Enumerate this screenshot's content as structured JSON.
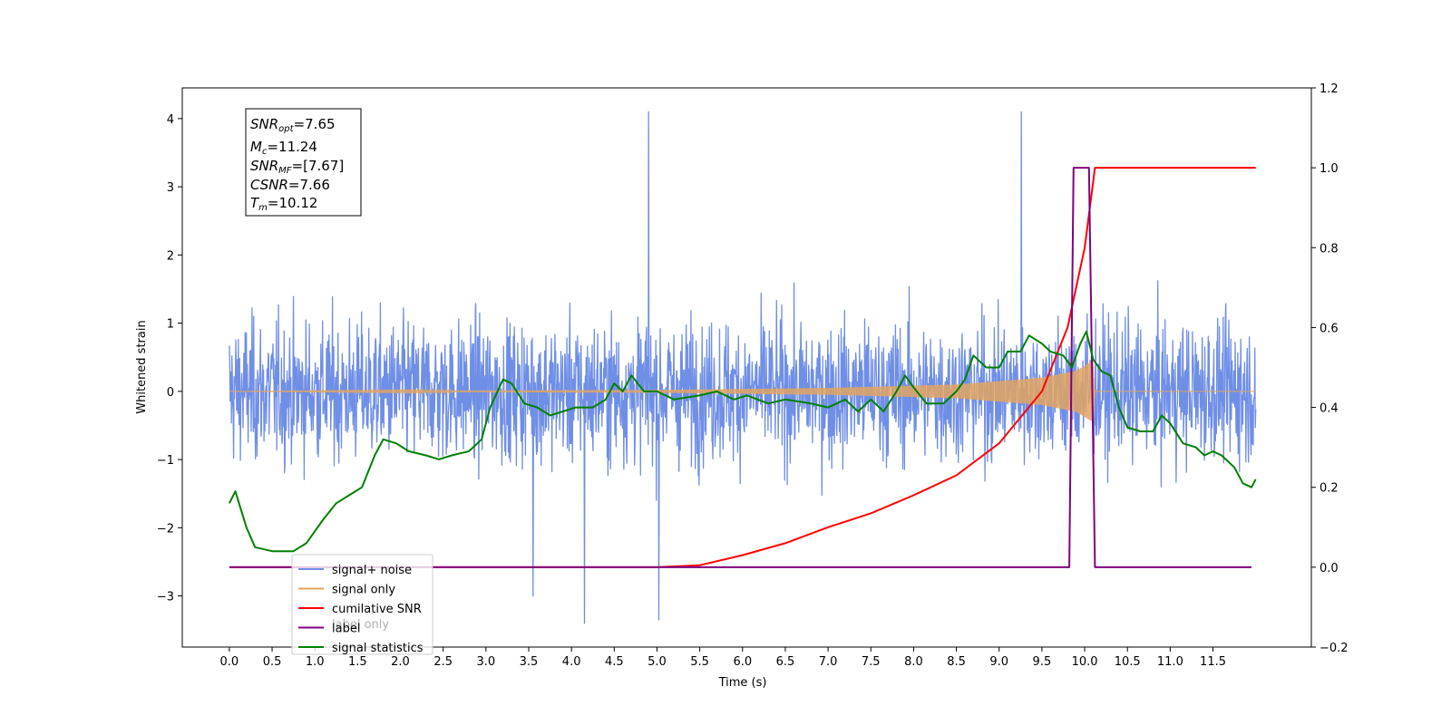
{
  "chart_data": {
    "type": "line",
    "xlabel": "Time (s)",
    "ylabel_left": "Whitened strain",
    "ylabel_right": "",
    "xlim": [
      -0.55,
      12.65
    ],
    "ylim_left": [
      -3.75,
      4.45
    ],
    "ylim_right": [
      -0.2,
      1.2
    ],
    "x_ticks": [
      "0.0",
      "0.5",
      "1.0",
      "1.5",
      "2.0",
      "2.5",
      "3.0",
      "3.5",
      "4.0",
      "4.5",
      "5.0",
      "5.5",
      "6.0",
      "6.5",
      "7.0",
      "7.5",
      "8.0",
      "8.5",
      "9.0",
      "9.5",
      "10.0",
      "10.5",
      "11.0",
      "11.5"
    ],
    "y_ticks_left": [
      "−3",
      "−2",
      "−1",
      "0",
      "1",
      "2",
      "3",
      "4"
    ],
    "y_ticks_right": [
      "−0.2",
      "0.0",
      "0.2",
      "0.4",
      "0.6",
      "0.8",
      "1.0",
      "1.2"
    ],
    "grid": false,
    "legend_placement": "lower-left",
    "stats_box": {
      "snr_opt": {
        "main": "SNR",
        "sub": "opt",
        "value": "=7.65"
      },
      "mc": {
        "main": "M",
        "sub": "c",
        "value": "=11.24"
      },
      "snr_mf": {
        "main": "SNR",
        "sub": "MF",
        "value": "=[7.67]"
      },
      "csnr": {
        "main": "CSNR",
        "value": "=7.66"
      },
      "tm": {
        "main": "T",
        "sub": "m",
        "value": "=10.12"
      }
    },
    "series": [
      {
        "name": "signal+ noise",
        "axis": "left",
        "color": "#6f8ee6",
        "x_range": [
          0.0,
          12.0
        ],
        "noise_std": 0.75,
        "notable_peaks": [
          {
            "x": 4.9,
            "y": 4.1
          },
          {
            "x": 9.26,
            "y": 4.1
          },
          {
            "x": 4.15,
            "y": -3.4
          },
          {
            "x": 5.02,
            "y": -3.35
          },
          {
            "x": 3.55,
            "y": -3.0
          }
        ]
      },
      {
        "name": "signal only",
        "axis": "left",
        "color": "#e3a561",
        "envelope": [
          {
            "x": 0.0,
            "y": 0.0
          },
          {
            "x": 5.0,
            "y": 0.02
          },
          {
            "x": 7.0,
            "y": 0.05
          },
          {
            "x": 8.5,
            "y": 0.1
          },
          {
            "x": 9.5,
            "y": 0.2
          },
          {
            "x": 9.9,
            "y": 0.3
          },
          {
            "x": 10.1,
            "y": 0.45
          },
          {
            "x": 10.12,
            "y": 0.0
          },
          {
            "x": 12.0,
            "y": 0.0
          }
        ]
      },
      {
        "name": "cumilative SNR",
        "axis": "right",
        "color": "#ff0000",
        "points": [
          {
            "x": 0.0,
            "y": 0.0
          },
          {
            "x": 5.0,
            "y": 0.0
          },
          {
            "x": 5.5,
            "y": 0.005
          },
          {
            "x": 6.0,
            "y": 0.03
          },
          {
            "x": 6.5,
            "y": 0.06
          },
          {
            "x": 7.0,
            "y": 0.1
          },
          {
            "x": 7.5,
            "y": 0.135
          },
          {
            "x": 8.0,
            "y": 0.18
          },
          {
            "x": 8.5,
            "y": 0.23
          },
          {
            "x": 9.0,
            "y": 0.31
          },
          {
            "x": 9.5,
            "y": 0.44
          },
          {
            "x": 9.8,
            "y": 0.6
          },
          {
            "x": 10.0,
            "y": 0.8
          },
          {
            "x": 10.12,
            "y": 1.0
          },
          {
            "x": 12.0,
            "y": 1.0
          }
        ]
      },
      {
        "name": "label",
        "axis": "right",
        "color": "#800080",
        "points": [
          {
            "x": 0.0,
            "y": 0.0
          },
          {
            "x": 9.82,
            "y": 0.0
          },
          {
            "x": 9.87,
            "y": 1.0
          },
          {
            "x": 10.05,
            "y": 1.0
          },
          {
            "x": 10.12,
            "y": 0.0
          },
          {
            "x": 11.95,
            "y": 0.0
          }
        ]
      },
      {
        "name": "signal statistics",
        "axis": "right",
        "color": "#008000",
        "points": [
          {
            "x": 0.0,
            "y": 0.16
          },
          {
            "x": 0.07,
            "y": 0.19
          },
          {
            "x": 0.2,
            "y": 0.1
          },
          {
            "x": 0.3,
            "y": 0.05
          },
          {
            "x": 0.5,
            "y": 0.04
          },
          {
            "x": 0.75,
            "y": 0.04
          },
          {
            "x": 0.9,
            "y": 0.06
          },
          {
            "x": 1.0,
            "y": 0.09
          },
          {
            "x": 1.1,
            "y": 0.12
          },
          {
            "x": 1.25,
            "y": 0.16
          },
          {
            "x": 1.4,
            "y": 0.18
          },
          {
            "x": 1.55,
            "y": 0.2
          },
          {
            "x": 1.7,
            "y": 0.28
          },
          {
            "x": 1.8,
            "y": 0.32
          },
          {
            "x": 1.95,
            "y": 0.31
          },
          {
            "x": 2.1,
            "y": 0.29
          },
          {
            "x": 2.3,
            "y": 0.28
          },
          {
            "x": 2.45,
            "y": 0.27
          },
          {
            "x": 2.6,
            "y": 0.28
          },
          {
            "x": 2.8,
            "y": 0.29
          },
          {
            "x": 2.95,
            "y": 0.32
          },
          {
            "x": 3.05,
            "y": 0.4
          },
          {
            "x": 3.2,
            "y": 0.47
          },
          {
            "x": 3.3,
            "y": 0.46
          },
          {
            "x": 3.45,
            "y": 0.41
          },
          {
            "x": 3.6,
            "y": 0.4
          },
          {
            "x": 3.75,
            "y": 0.38
          },
          {
            "x": 3.9,
            "y": 0.39
          },
          {
            "x": 4.05,
            "y": 0.4
          },
          {
            "x": 4.25,
            "y": 0.4
          },
          {
            "x": 4.4,
            "y": 0.42
          },
          {
            "x": 4.5,
            "y": 0.46
          },
          {
            "x": 4.6,
            "y": 0.44
          },
          {
            "x": 4.7,
            "y": 0.48
          },
          {
            "x": 4.85,
            "y": 0.44
          },
          {
            "x": 5.0,
            "y": 0.44
          },
          {
            "x": 5.2,
            "y": 0.42
          },
          {
            "x": 5.5,
            "y": 0.43
          },
          {
            "x": 5.7,
            "y": 0.44
          },
          {
            "x": 5.9,
            "y": 0.42
          },
          {
            "x": 6.05,
            "y": 0.43
          },
          {
            "x": 6.3,
            "y": 0.41
          },
          {
            "x": 6.5,
            "y": 0.42
          },
          {
            "x": 6.8,
            "y": 0.41
          },
          {
            "x": 7.0,
            "y": 0.4
          },
          {
            "x": 7.2,
            "y": 0.42
          },
          {
            "x": 7.35,
            "y": 0.39
          },
          {
            "x": 7.5,
            "y": 0.42
          },
          {
            "x": 7.65,
            "y": 0.39
          },
          {
            "x": 7.8,
            "y": 0.44
          },
          {
            "x": 7.9,
            "y": 0.48
          },
          {
            "x": 8.0,
            "y": 0.45
          },
          {
            "x": 8.15,
            "y": 0.41
          },
          {
            "x": 8.35,
            "y": 0.41
          },
          {
            "x": 8.5,
            "y": 0.44
          },
          {
            "x": 8.6,
            "y": 0.47
          },
          {
            "x": 8.7,
            "y": 0.53
          },
          {
            "x": 8.85,
            "y": 0.5
          },
          {
            "x": 9.0,
            "y": 0.5
          },
          {
            "x": 9.1,
            "y": 0.54
          },
          {
            "x": 9.25,
            "y": 0.54
          },
          {
            "x": 9.35,
            "y": 0.58
          },
          {
            "x": 9.5,
            "y": 0.56
          },
          {
            "x": 9.6,
            "y": 0.54
          },
          {
            "x": 9.75,
            "y": 0.53
          },
          {
            "x": 9.85,
            "y": 0.5
          },
          {
            "x": 9.95,
            "y": 0.56
          },
          {
            "x": 10.02,
            "y": 0.59
          },
          {
            "x": 10.1,
            "y": 0.52
          },
          {
            "x": 10.2,
            "y": 0.49
          },
          {
            "x": 10.3,
            "y": 0.48
          },
          {
            "x": 10.4,
            "y": 0.4
          },
          {
            "x": 10.5,
            "y": 0.35
          },
          {
            "x": 10.65,
            "y": 0.34
          },
          {
            "x": 10.8,
            "y": 0.34
          },
          {
            "x": 10.9,
            "y": 0.38
          },
          {
            "x": 11.0,
            "y": 0.36
          },
          {
            "x": 11.15,
            "y": 0.31
          },
          {
            "x": 11.3,
            "y": 0.3
          },
          {
            "x": 11.4,
            "y": 0.28
          },
          {
            "x": 11.5,
            "y": 0.29
          },
          {
            "x": 11.6,
            "y": 0.28
          },
          {
            "x": 11.75,
            "y": 0.25
          },
          {
            "x": 11.85,
            "y": 0.21
          },
          {
            "x": 11.95,
            "y": 0.2
          },
          {
            "x": 12.0,
            "y": 0.22
          }
        ]
      }
    ],
    "legend": [
      "signal+ noise",
      "signal only",
      "cumilative SNR",
      "label",
      "signal statistics"
    ],
    "legend_overlap_text": "label only"
  }
}
